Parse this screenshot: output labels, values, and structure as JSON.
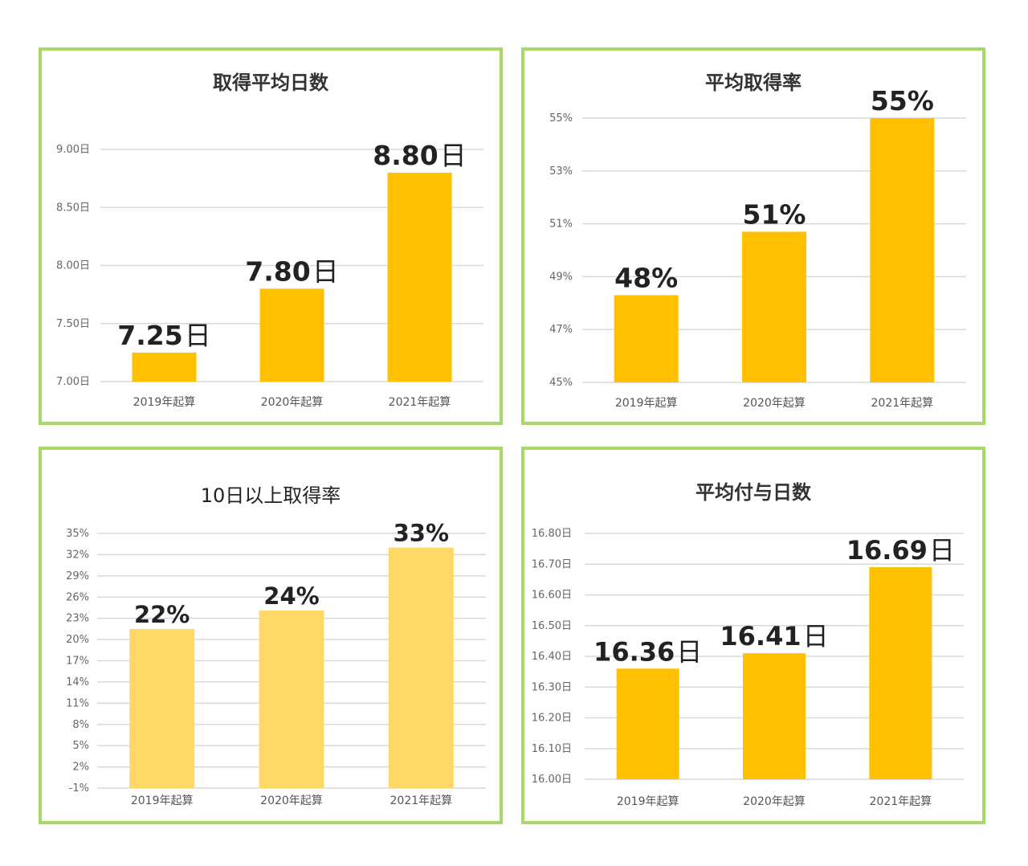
{
  "colors": {
    "panel_border": "#a6d96a",
    "bar": "#ffc000",
    "bar_light": "#ffd966",
    "grid": "#d9d9d9"
  },
  "chart_data": [
    {
      "type": "bar",
      "title": "取得平均日数",
      "categories": [
        "2019年起算",
        "2020年起算",
        "2021年起算"
      ],
      "values": [
        7.25,
        7.8,
        8.8
      ],
      "data_labels": [
        {
          "num": "7.25",
          "unit": "日"
        },
        {
          "num": "7.80",
          "unit": "日"
        },
        {
          "num": "8.80",
          "unit": "日"
        }
      ],
      "ylim": [
        7.0,
        9.0
      ],
      "y_ticks": [
        7.0,
        7.5,
        8.0,
        8.5,
        9.0
      ],
      "y_tick_labels": [
        "7.00日",
        "7.50日",
        "8.00日",
        "8.50日",
        "9.00日"
      ],
      "grid": true,
      "bar_color": "#ffc000"
    },
    {
      "type": "bar",
      "title": "平均取得率",
      "categories": [
        "2019年起算",
        "2020年起算",
        "2021年起算"
      ],
      "values": [
        48.3,
        50.7,
        55
      ],
      "data_labels": [
        {
          "num": "48%",
          "unit": ""
        },
        {
          "num": "51%",
          "unit": ""
        },
        {
          "num": "55%",
          "unit": ""
        }
      ],
      "ylim": [
        45,
        55
      ],
      "y_ticks": [
        45,
        47,
        49,
        51,
        53,
        55
      ],
      "y_tick_labels": [
        "45%",
        "47%",
        "49%",
        "51%",
        "53%",
        "55%"
      ],
      "grid": true,
      "bar_color": "#ffc000"
    },
    {
      "type": "bar",
      "title": "10日以上取得率",
      "categories": [
        "2019年起算",
        "2020年起算",
        "2021年起算"
      ],
      "values": [
        21.5,
        24.1,
        33.0
      ],
      "data_labels": [
        {
          "num": "22%",
          "unit": ""
        },
        {
          "num": "24%",
          "unit": ""
        },
        {
          "num": "33%",
          "unit": ""
        }
      ],
      "ylim": [
        -1,
        35
      ],
      "y_ticks": [
        -1,
        2,
        5,
        8,
        11,
        14,
        17,
        20,
        23,
        26,
        29,
        32,
        35
      ],
      "y_tick_labels": [
        "-1%",
        "2%",
        "5%",
        "8%",
        "11%",
        "14%",
        "17%",
        "20%",
        "23%",
        "26%",
        "29%",
        "32%",
        "35%"
      ],
      "grid": true,
      "bar_color": "#ffd966"
    },
    {
      "type": "bar",
      "title": "平均付与日数",
      "categories": [
        "2019年起算",
        "2020年起算",
        "2021年起算"
      ],
      "values": [
        16.36,
        16.41,
        16.69
      ],
      "data_labels": [
        {
          "num": "16.36",
          "unit": "日"
        },
        {
          "num": "16.41",
          "unit": "日"
        },
        {
          "num": "16.69",
          "unit": "日"
        }
      ],
      "ylim": [
        16.0,
        16.8
      ],
      "y_ticks": [
        16.0,
        16.1,
        16.2,
        16.3,
        16.4,
        16.5,
        16.6,
        16.7,
        16.8
      ],
      "y_tick_labels": [
        "16.00日",
        "16.10日",
        "16.20日",
        "16.30日",
        "16.40日",
        "16.50日",
        "16.60日",
        "16.70日",
        "16.80日"
      ],
      "grid": true,
      "bar_color": "#ffc000"
    }
  ]
}
